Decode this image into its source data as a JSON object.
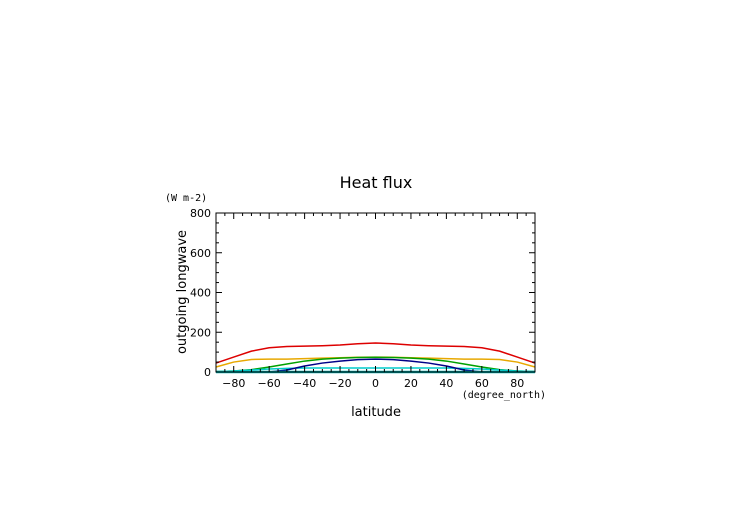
{
  "chart_data": {
    "type": "line",
    "title": "Heat flux",
    "xlabel": "latitude",
    "ylabel": "outgoing longwave",
    "x_unit": "(degree_north)",
    "y_unit": "(W m-2)",
    "xlim": [
      -90,
      90
    ],
    "ylim": [
      0,
      800
    ],
    "x_ticks": [
      -80,
      -60,
      -40,
      -20,
      0,
      20,
      40,
      60,
      80
    ],
    "x_tick_labels": [
      "−80",
      "−60",
      "−40",
      "−20",
      "0",
      "20",
      "40",
      "60",
      "80"
    ],
    "y_ticks": [
      0,
      200,
      400,
      600,
      800
    ],
    "y_tick_labels": [
      "0",
      "200",
      "400",
      "600",
      "800"
    ],
    "grid": false,
    "x": [
      -90,
      -80,
      -70,
      -60,
      -50,
      -40,
      -30,
      -20,
      -10,
      0,
      10,
      20,
      30,
      40,
      50,
      60,
      70,
      80,
      90
    ],
    "series": [
      {
        "color": "#dd0000",
        "values": [
          45,
          75,
          105,
          122,
          128,
          130,
          132,
          136,
          142,
          146,
          142,
          136,
          132,
          130,
          128,
          122,
          105,
          75,
          45
        ]
      },
      {
        "color": "#e8a800",
        "values": [
          25,
          50,
          63,
          65,
          65,
          67,
          70,
          72,
          74,
          75,
          74,
          72,
          70,
          67,
          65,
          65,
          63,
          50,
          25
        ]
      },
      {
        "color": "#00a000",
        "values": [
          2,
          5,
          12,
          25,
          40,
          55,
          65,
          70,
          73,
          74,
          73,
          70,
          65,
          55,
          40,
          25,
          12,
          5,
          2
        ]
      },
      {
        "color": "#00cccc",
        "values": [
          2,
          5,
          10,
          15,
          18,
          20,
          20,
          20,
          20,
          20,
          20,
          20,
          20,
          20,
          18,
          15,
          10,
          5,
          2
        ]
      },
      {
        "color": "#000088",
        "values": [
          0,
          0,
          0,
          0,
          10,
          30,
          45,
          55,
          62,
          65,
          62,
          55,
          45,
          30,
          10,
          0,
          0,
          0,
          0
        ]
      },
      {
        "color": "#00aaaa",
        "values": [
          0,
          0,
          0,
          0,
          0,
          0,
          0,
          0,
          0,
          0,
          0,
          0,
          0,
          0,
          0,
          0,
          0,
          0,
          0
        ]
      }
    ]
  }
}
